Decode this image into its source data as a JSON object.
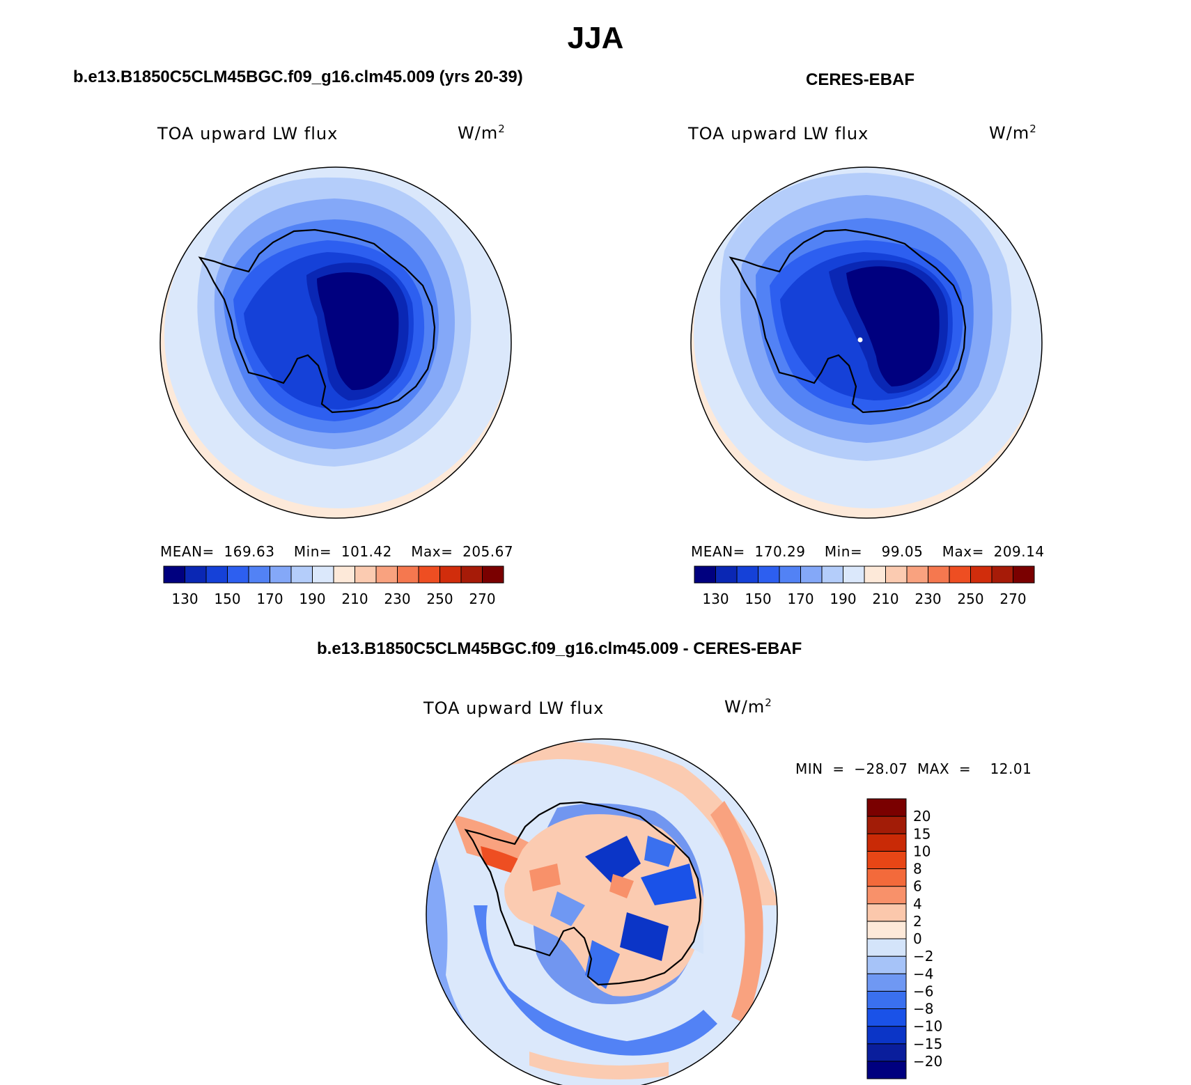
{
  "title": "JJA",
  "panels": {
    "model": {
      "title": "b.e13.B1850C5CLM45BGC.f09_g16.clm45.009 (yrs 20-39)",
      "variable": "TOA upward LW flux",
      "units_base": "W/m",
      "units_exp": "2",
      "stats": "MEAN=  169.63    Min=  101.42    Max=  205.67"
    },
    "obs": {
      "title": "CERES-EBAF",
      "variable": "TOA upward LW flux",
      "units_base": "W/m",
      "units_exp": "2",
      "stats": "MEAN=  170.29    Min=    99.05    Max=  209.14"
    },
    "diff": {
      "title": "b.e13.B1850C5CLM45BGC.f09_g16.clm45.009 - CERES-EBAF",
      "variable": "TOA upward LW flux",
      "units_base": "W/m",
      "units_exp": "2",
      "stats": "MIN  =  −28.07  MAX  =    12.01"
    }
  },
  "chart_data": [
    {
      "type": "heatmap",
      "projection": "south-polar-stereographic",
      "title": "b.e13.B1850C5CLM45BGC.f09_g16.clm45.009 (yrs 20-39)",
      "variable": "TOA upward LW flux",
      "units": "W/m2",
      "mean": 169.63,
      "min": 101.42,
      "max": 205.67,
      "contour_levels": [
        130,
        140,
        150,
        160,
        170,
        180,
        190,
        200,
        210,
        220,
        230,
        240,
        250,
        260,
        270
      ],
      "colorbar_tick_labels": [
        "130",
        "150",
        "170",
        "190",
        "210",
        "230",
        "250",
        "270"
      ]
    },
    {
      "type": "heatmap",
      "projection": "south-polar-stereographic",
      "title": "CERES-EBAF",
      "variable": "TOA upward LW flux",
      "units": "W/m2",
      "mean": 170.29,
      "min": 99.05,
      "max": 209.14,
      "contour_levels": [
        130,
        140,
        150,
        160,
        170,
        180,
        190,
        200,
        210,
        220,
        230,
        240,
        250,
        260,
        270
      ],
      "colorbar_tick_labels": [
        "130",
        "150",
        "170",
        "190",
        "210",
        "230",
        "250",
        "270"
      ]
    },
    {
      "type": "heatmap",
      "projection": "south-polar-stereographic",
      "title": "b.e13.B1850C5CLM45BGC.f09_g16.clm45.009 - CERES-EBAF",
      "variable": "TOA upward LW flux",
      "units": "W/m2",
      "min": -28.07,
      "max": 12.01,
      "contour_levels": [
        -20,
        -15,
        -10,
        -8,
        -6,
        -4,
        -2,
        0,
        2,
        4,
        6,
        8,
        10,
        15,
        20
      ],
      "colorbar_tick_labels": [
        "−20",
        "−15",
        "−10",
        "−8",
        "−6",
        "−4",
        "−2",
        "0",
        "2",
        "4",
        "6",
        "8",
        "10",
        "15",
        "20"
      ]
    }
  ],
  "colors": {
    "abs_scale": [
      "#00007f",
      "#0a27b4",
      "#1541d8",
      "#2d5ff0",
      "#5282f5",
      "#84a8f8",
      "#b4cdfa",
      "#dbe8fb",
      "#fde9d9",
      "#fbcbb1",
      "#f9a27f",
      "#f5784f",
      "#ee4e22",
      "#d12d0c",
      "#a61b08",
      "#7a0000"
    ],
    "diff_scale": [
      "#00007f",
      "#0a1e9c",
      "#0b35c7",
      "#1a52e8",
      "#3a70ef",
      "#6f98f3",
      "#a6c3f8",
      "#d4e4fa",
      "#fde9d9",
      "#fbc8ac",
      "#f8916a",
      "#f36a3b",
      "#e84616",
      "#c92a06",
      "#a21c07",
      "#7a0000"
    ]
  }
}
